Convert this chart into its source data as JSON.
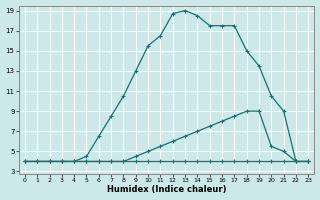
{
  "xlabel": "Humidex (Indice chaleur)",
  "bg_color": "#cce8e8",
  "grid_color": "#ffffff",
  "line_color": "#1a7070",
  "xlim": [
    -0.5,
    23.5
  ],
  "ylim": [
    2.8,
    19.5
  ],
  "xticks": [
    0,
    1,
    2,
    3,
    4,
    5,
    6,
    7,
    8,
    9,
    10,
    11,
    12,
    13,
    14,
    15,
    16,
    17,
    18,
    19,
    20,
    21,
    22,
    23
  ],
  "yticks": [
    3,
    5,
    7,
    9,
    11,
    13,
    15,
    17,
    19
  ],
  "curve1_x": [
    0,
    1,
    2,
    3,
    4,
    5,
    6,
    7,
    8,
    9,
    10,
    11,
    12,
    13,
    14,
    15,
    16,
    17,
    18,
    19,
    20,
    21,
    22,
    23
  ],
  "curve1_y": [
    4,
    4,
    4,
    4,
    4,
    4.5,
    6.5,
    8.5,
    10.5,
    13.0,
    15.5,
    16.5,
    18.7,
    19.0,
    18.5,
    17.5,
    17.5,
    17.5,
    15.0,
    13.5,
    10.5,
    9.0,
    4.0,
    4.0
  ],
  "curve2_x": [
    0,
    1,
    2,
    3,
    4,
    5,
    6,
    7,
    8,
    9,
    10,
    11,
    12,
    13,
    14,
    15,
    16,
    17,
    18,
    19,
    20,
    21,
    22,
    23
  ],
  "curve2_y": [
    4,
    4,
    4,
    4,
    4,
    4,
    4,
    4,
    4,
    4.5,
    5.0,
    5.5,
    6.0,
    6.5,
    7.0,
    7.5,
    8.0,
    8.5,
    9.0,
    9.0,
    5.5,
    5.0,
    4.0,
    4.0
  ],
  "curve3_x": [
    0,
    1,
    2,
    3,
    4,
    5,
    6,
    7,
    8,
    9,
    10,
    11,
    12,
    13,
    14,
    15,
    16,
    17,
    18,
    19,
    20,
    21,
    22,
    23
  ],
  "curve3_y": [
    4,
    4,
    4,
    4,
    4,
    4,
    4,
    4,
    4,
    4,
    4,
    4,
    4,
    4,
    4,
    4,
    4,
    4,
    4,
    4,
    4,
    4,
    4,
    4
  ]
}
